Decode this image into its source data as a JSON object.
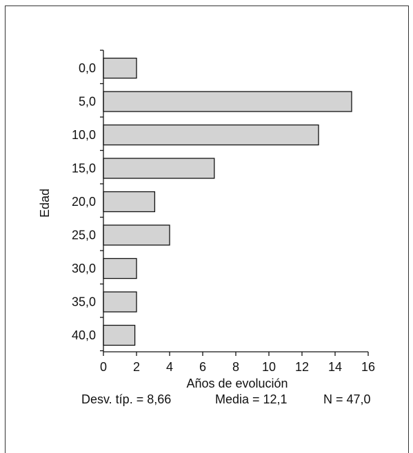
{
  "chart_data": {
    "type": "bar",
    "orientation": "horizontal",
    "categories": [
      "0,0",
      "5,0",
      "10,0",
      "15,0",
      "20,0",
      "25,0",
      "30,0",
      "35,0",
      "40,0"
    ],
    "values": [
      2,
      15,
      13,
      6.7,
      3.1,
      4,
      2,
      2,
      1.9
    ],
    "xlabel": "Años de evolución",
    "ylabel": "Edad",
    "xlim": [
      0,
      16
    ],
    "xticks": [
      "0",
      "2",
      "4",
      "6",
      "8",
      "10",
      "12",
      "14",
      "16"
    ],
    "bar_color": "#d3d3d3",
    "grid": false,
    "legend": "none"
  },
  "stats": {
    "sd": "Desv. típ. = 8,66",
    "mean": "Media = 12,1",
    "n": "N = 47,0"
  }
}
